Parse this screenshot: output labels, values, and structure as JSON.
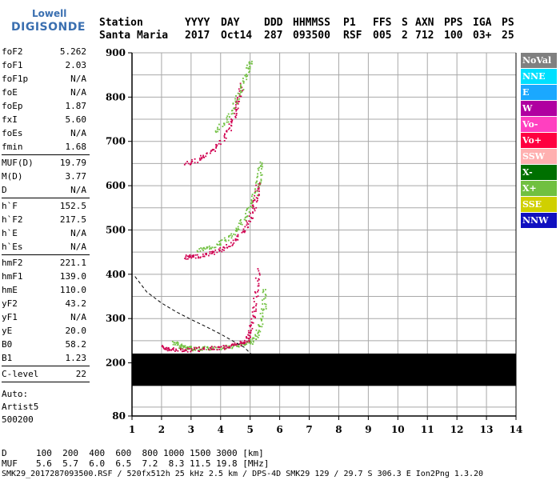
{
  "logo": {
    "line1": "Lowell",
    "line2": "DIGISONDE"
  },
  "header": {
    "labels": [
      "Station",
      "YYYY",
      "DAY",
      "DDD",
      "HHMMSS",
      "P1",
      "FFS",
      "S",
      "AXN",
      "PPS",
      "IGA",
      "PS"
    ],
    "values": [
      "Santa Maria",
      "2017",
      "Oct14",
      "287",
      "093500",
      "RSF",
      "005",
      "2",
      "712",
      "100",
      "03+",
      "25"
    ]
  },
  "params_group1": [
    {
      "k": "foF2",
      "v": "5.262"
    },
    {
      "k": "foF1",
      "v": "2.03"
    },
    {
      "k": "foF1p",
      "v": "N/A"
    },
    {
      "k": "foE",
      "v": "N/A"
    },
    {
      "k": "foEp",
      "v": "1.87"
    },
    {
      "k": "fxI",
      "v": "5.60"
    },
    {
      "k": "foEs",
      "v": "N/A"
    },
    {
      "k": "fmin",
      "v": "1.68"
    }
  ],
  "params_group2": [
    {
      "k": "MUF(D)",
      "v": "19.79"
    },
    {
      "k": "M(D)",
      "v": "3.77"
    },
    {
      "k": "D",
      "v": "N/A"
    }
  ],
  "params_group3": [
    {
      "k": "h`F",
      "v": "152.5"
    },
    {
      "k": "h`F2",
      "v": "217.5"
    },
    {
      "k": "h`E",
      "v": "N/A"
    },
    {
      "k": "h`Es",
      "v": "N/A"
    }
  ],
  "params_group4": [
    {
      "k": "hmF2",
      "v": "221.1"
    },
    {
      "k": "hmF1",
      "v": "139.0"
    },
    {
      "k": "hmE",
      "v": "110.0"
    },
    {
      "k": "yF2",
      "v": "43.2"
    },
    {
      "k": "yF1",
      "v": "N/A"
    },
    {
      "k": "yE",
      "v": "20.0"
    },
    {
      "k": "B0",
      "v": "58.2"
    },
    {
      "k": "B1",
      "v": "1.23"
    }
  ],
  "params_group5": [
    {
      "k": "C-level",
      "v": "22"
    }
  ],
  "autoscaling": {
    "line1": "Auto:",
    "line2": "Artist5",
    "line3": "500200"
  },
  "legend": [
    {
      "label": "NoVal",
      "color": "#808080"
    },
    {
      "label": "NNE",
      "color": "#00e0ff"
    },
    {
      "label": "E",
      "color": "#1aa8ff"
    },
    {
      "label": "W",
      "color": "#b000a0"
    },
    {
      "label": "Vo-",
      "color": "#ff40c0"
    },
    {
      "label": "Vo+",
      "color": "#ff0040"
    },
    {
      "label": "SSW",
      "color": "#ffb0b0"
    },
    {
      "label": "X-",
      "color": "#007000"
    },
    {
      "label": "X+",
      "color": "#70c040"
    },
    {
      "label": "SSE",
      "color": "#d0d000"
    },
    {
      "label": "NNW",
      "color": "#1010c0"
    }
  ],
  "chart_data": {
    "type": "scatter",
    "title": "",
    "xlabel": "",
    "ylabel": "",
    "xlim": [
      1,
      14
    ],
    "ylim": [
      80,
      900
    ],
    "xticks": [
      "1",
      "2",
      "3",
      "4",
      "5",
      "6",
      "7",
      "8",
      "9",
      "10",
      "11",
      "12",
      "13",
      "14"
    ],
    "yticks": [
      "80",
      "200",
      "300",
      "400",
      "500",
      "600",
      "700",
      "800",
      "900"
    ],
    "grid": true,
    "legend_position": "right",
    "series": [
      {
        "color": "#70c040",
        "points": [
          [
            2.4,
            248
          ],
          [
            2.6,
            240
          ],
          [
            2.8,
            236
          ],
          [
            3.0,
            234
          ],
          [
            3.3,
            233
          ],
          [
            3.6,
            234
          ],
          [
            4.0,
            236
          ],
          [
            4.4,
            239
          ],
          [
            4.8,
            243
          ],
          [
            5.0,
            248
          ],
          [
            5.2,
            262
          ],
          [
            5.35,
            290
          ],
          [
            5.45,
            330
          ],
          [
            5.5,
            370
          ]
        ]
      },
      {
        "color": "#d00050",
        "points": [
          [
            2.05,
            238
          ],
          [
            2.2,
            232
          ],
          [
            2.6,
            230
          ],
          [
            3.0,
            231
          ],
          [
            3.5,
            233
          ],
          [
            4.0,
            236
          ],
          [
            4.4,
            240
          ],
          [
            4.7,
            246
          ],
          [
            4.9,
            255
          ],
          [
            5.0,
            275
          ],
          [
            5.1,
            310
          ],
          [
            5.2,
            360
          ],
          [
            5.25,
            415
          ]
        ]
      },
      {
        "color": "#d00050",
        "points": [
          [
            2.8,
            440
          ],
          [
            3.0,
            441
          ],
          [
            3.4,
            444
          ],
          [
            3.8,
            452
          ],
          [
            4.2,
            464
          ],
          [
            4.6,
            485
          ],
          [
            4.9,
            515
          ],
          [
            5.1,
            550
          ],
          [
            5.2,
            580
          ],
          [
            5.25,
            610
          ]
        ]
      },
      {
        "color": "#70c040",
        "points": [
          [
            3.2,
            455
          ],
          [
            3.6,
            460
          ],
          [
            4.0,
            472
          ],
          [
            4.4,
            492
          ],
          [
            4.7,
            520
          ],
          [
            5.0,
            555
          ],
          [
            5.2,
            590
          ],
          [
            5.3,
            625
          ],
          [
            5.35,
            655
          ]
        ]
      },
      {
        "color": "#d00050",
        "points": [
          [
            2.8,
            650
          ],
          [
            3.2,
            658
          ],
          [
            3.6,
            675
          ],
          [
            4.0,
            700
          ],
          [
            4.3,
            735
          ],
          [
            4.5,
            770
          ],
          [
            4.6,
            800
          ],
          [
            4.7,
            830
          ]
        ]
      },
      {
        "color": "#70c040",
        "points": [
          [
            3.8,
            720
          ],
          [
            4.2,
            752
          ],
          [
            4.5,
            790
          ],
          [
            4.7,
            825
          ],
          [
            4.9,
            860
          ],
          [
            5.0,
            885
          ]
        ]
      }
    ],
    "virtual_height_model": {
      "color": "#000000",
      "style": "dashed",
      "points": [
        [
          1.1,
          395
        ],
        [
          1.5,
          360
        ],
        [
          2.0,
          335
        ],
        [
          2.5,
          315
        ],
        [
          3.0,
          298
        ],
        [
          3.5,
          282
        ],
        [
          4.0,
          265
        ],
        [
          4.4,
          250
        ],
        [
          4.8,
          235
        ],
        [
          5.0,
          222
        ],
        [
          5.15,
          212
        ],
        [
          5.262,
          205
        ]
      ]
    },
    "blanked_band_km": [
      148,
      221
    ]
  },
  "footer": {
    "row1_label": "D",
    "row1_values": "100  200  400  600  800 1000 1500 3000 [km]",
    "row2_label": "MUF",
    "row2_values": "5.6  5.7  6.0  6.5  7.2  8.3 11.5 19.8 [MHz]",
    "info_line": "SMK29_2017287093500.RSF / 520fx512h 25 kHz 2.5 km / DPS-4D SMK29 129 / 29.7 S 306.3 E Ion2Png 1.3.20"
  }
}
